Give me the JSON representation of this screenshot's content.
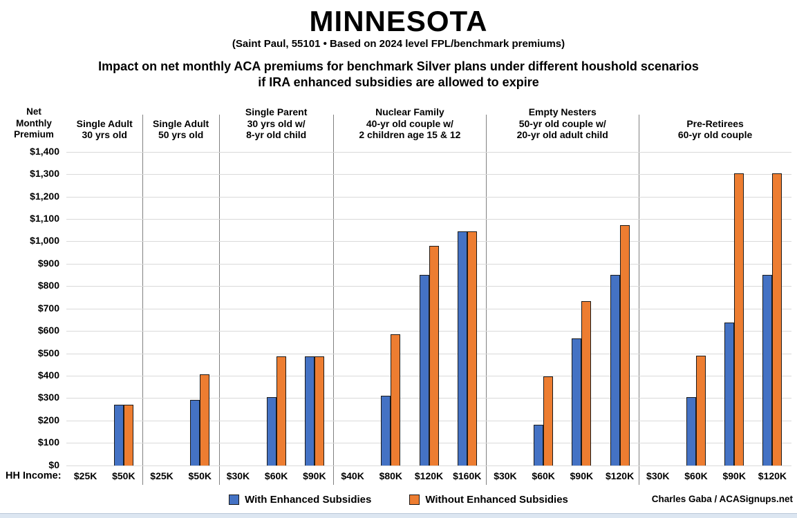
{
  "header": {
    "title": "MINNESOTA",
    "subtitle": "(Saint Paul, 55101 • Based on 2024 level FPL/benchmark premiums)",
    "description_line1": "Impact on net monthly ACA premiums for benchmark Silver plans under different houshold scenarios",
    "description_line2": "if IRA enhanced subsidies are allowed to expire"
  },
  "axis": {
    "y_title_lines": [
      "Net",
      "Monthly",
      "Premium"
    ],
    "y_ticks": [
      "$1,400",
      "$1,300",
      "$1,200",
      "$1,100",
      "$1,000",
      "$900",
      "$800",
      "$700",
      "$600",
      "$500",
      "$400",
      "$300",
      "$200",
      "$100",
      "$0"
    ],
    "x_title": "HH Income:"
  },
  "legend": [
    {
      "label": "With Enhanced Subsidies",
      "color": "#4472C4"
    },
    {
      "label": "Without Enhanced Subsidies",
      "color": "#ED7D31"
    }
  ],
  "credit": "Charles Gaba / ACASignups.net",
  "colors": {
    "bar_border": "#1a1a1a",
    "gridline": "#d9d9d9",
    "divider": "#808080",
    "bottom_strip": "#dce6f1"
  },
  "chart_data": {
    "type": "bar",
    "title": "MINNESOTA — Impact on net monthly ACA premiums for benchmark Silver plans under different houshold scenarios if IRA enhanced subsidies are allowed to expire",
    "subtitle": "(Saint Paul, 55101 • Based on 2024 level FPL/benchmark premiums)",
    "xlabel": "HH Income",
    "ylabel": "Net Monthly Premium",
    "ylim": [
      0,
      1400
    ],
    "gridline_step": 100,
    "grid": true,
    "legend_position": "bottom",
    "series": [
      "With Enhanced Subsidies",
      "Without Enhanced Subsidies"
    ],
    "groups": [
      {
        "label_lines": [
          "Single Adult",
          "30 yrs old"
        ],
        "incomes": [
          "$25K",
          "$50K"
        ],
        "with": [
          0,
          270
        ],
        "without": [
          0,
          270
        ]
      },
      {
        "label_lines": [
          "Single Adult",
          "50 yrs old"
        ],
        "incomes": [
          "$25K",
          "$50K"
        ],
        "with": [
          0,
          293
        ],
        "without": [
          0,
          405
        ]
      },
      {
        "label_lines": [
          "Single Parent",
          "30 yrs old w/",
          "8-yr old child"
        ],
        "incomes": [
          "$30K",
          "$60K",
          "$90K"
        ],
        "with": [
          0,
          305,
          487
        ],
        "without": [
          0,
          487,
          487
        ]
      },
      {
        "label_lines": [
          "Nuclear Family",
          "40-yr old couple w/",
          "2 children age 15 & 12"
        ],
        "incomes": [
          "$40K",
          "$80K",
          "$120K",
          "$160K"
        ],
        "with": [
          0,
          311,
          850,
          1045
        ],
        "without": [
          0,
          585,
          980,
          1045
        ]
      },
      {
        "label_lines": [
          "Empty Nesters",
          "50-yr old couple w/",
          "20-yr old adult child"
        ],
        "incomes": [
          "$30K",
          "$60K",
          "$90K",
          "$120K"
        ],
        "with": [
          0,
          182,
          566,
          850
        ],
        "without": [
          0,
          396,
          732,
          1073
        ]
      },
      {
        "label_lines": [
          "Pre-Retirees",
          "60-yr old couple"
        ],
        "incomes": [
          "$30K",
          "$60K",
          "$90K",
          "$120K"
        ],
        "with": [
          0,
          305,
          637,
          850
        ],
        "without": [
          0,
          490,
          1305,
          1305
        ]
      }
    ]
  }
}
